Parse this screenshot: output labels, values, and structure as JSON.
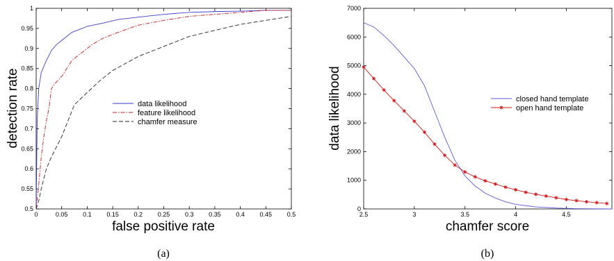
{
  "chart_data": [
    {
      "type": "line",
      "caption": "(a)",
      "xlabel": "false positive rate",
      "ylabel": "detection rate",
      "xlim": [
        0,
        0.5
      ],
      "ylim": [
        0.5,
        1
      ],
      "xticks": [
        0,
        0.05,
        0.1,
        0.15,
        0.2,
        0.25,
        0.3,
        0.35,
        0.4,
        0.45,
        0.5
      ],
      "xtick_labels": [
        "0",
        "0.05",
        "0.1",
        "0.15",
        "0.2",
        "0.25",
        "0.3",
        "0.35",
        "0.4",
        "0.45",
        "0.5"
      ],
      "yticks": [
        0.5,
        0.55,
        0.6,
        0.65,
        0.7,
        0.75,
        0.8,
        0.85,
        0.9,
        0.95,
        1
      ],
      "ytick_labels": [
        "0.5",
        "0.55",
        "0.6",
        "0.65",
        "0.7",
        "0.75",
        "0.8",
        "0.85",
        "0.9",
        "0.95",
        "1"
      ],
      "grid": false,
      "legend_position": "center-right",
      "series": [
        {
          "name": "data likelihood",
          "color": "#3b3bcf",
          "style": "solid",
          "x": [
            0,
            0.002,
            0.005,
            0.01,
            0.02,
            0.03,
            0.04,
            0.05,
            0.07,
            0.1,
            0.13,
            0.16,
            0.2,
            0.25,
            0.3,
            0.35,
            0.4,
            0.45,
            0.5
          ],
          "y": [
            0.5,
            0.72,
            0.8,
            0.84,
            0.87,
            0.895,
            0.91,
            0.92,
            0.94,
            0.955,
            0.963,
            0.972,
            0.978,
            0.985,
            0.99,
            0.992,
            0.993,
            0.995,
            0.995
          ]
        },
        {
          "name": "feature likelihood",
          "color": "#d01818",
          "style": "dashdot",
          "x": [
            0,
            0.005,
            0.01,
            0.015,
            0.02,
            0.025,
            0.03,
            0.035,
            0.05,
            0.07,
            0.09,
            0.11,
            0.13,
            0.16,
            0.2,
            0.25,
            0.3,
            0.35,
            0.4,
            0.45,
            0.5
          ],
          "y": [
            0.5,
            0.56,
            0.63,
            0.68,
            0.72,
            0.75,
            0.8,
            0.81,
            0.83,
            0.87,
            0.89,
            0.91,
            0.925,
            0.94,
            0.958,
            0.97,
            0.98,
            0.985,
            0.99,
            0.995,
            0.995
          ]
        },
        {
          "name": "chamfer measure",
          "color": "#222222",
          "style": "dashed",
          "x": [
            0,
            0.005,
            0.01,
            0.02,
            0.03,
            0.05,
            0.075,
            0.1,
            0.125,
            0.15,
            0.2,
            0.25,
            0.3,
            0.35,
            0.4,
            0.45,
            0.5
          ],
          "y": [
            0.5,
            0.52,
            0.55,
            0.6,
            0.63,
            0.68,
            0.76,
            0.79,
            0.82,
            0.845,
            0.88,
            0.905,
            0.93,
            0.945,
            0.96,
            0.97,
            0.98
          ]
        }
      ]
    },
    {
      "type": "line",
      "caption": "(b)",
      "xlabel": "chamfer score",
      "ylabel": "data likelihood",
      "xlim": [
        2.5,
        4.95
      ],
      "ylim": [
        0,
        7000
      ],
      "xticks": [
        2.5,
        3,
        3.5,
        4,
        4.5
      ],
      "xtick_labels": [
        "2.5",
        "3",
        "3.5",
        "4",
        "4.5"
      ],
      "yticks": [
        0,
        1000,
        2000,
        3000,
        4000,
        5000,
        6000,
        7000
      ],
      "ytick_labels": [
        "0",
        "1000",
        "2000",
        "3000",
        "4000",
        "5000",
        "6000",
        "7000"
      ],
      "grid": false,
      "legend_position": "center-right",
      "series": [
        {
          "name": "closed hand template",
          "color": "#5a5ad8",
          "style": "solid",
          "marker": "none",
          "x": [
            2.5,
            2.6,
            2.7,
            2.8,
            2.9,
            3.0,
            3.1,
            3.2,
            3.3,
            3.4,
            3.5,
            3.6,
            3.7,
            3.8,
            3.9,
            4.0,
            4.2,
            4.4,
            4.6,
            4.8,
            4.95
          ],
          "y": [
            6500,
            6350,
            6050,
            5700,
            5300,
            4900,
            4300,
            3400,
            2500,
            1700,
            1150,
            800,
            550,
            380,
            250,
            160,
            70,
            30,
            10,
            5,
            2
          ]
        },
        {
          "name": "open hand template",
          "color": "#d01818",
          "style": "solid",
          "marker": "star",
          "x": [
            2.5,
            2.6,
            2.7,
            2.8,
            2.9,
            3.0,
            3.1,
            3.2,
            3.3,
            3.4,
            3.5,
            3.6,
            3.7,
            3.8,
            3.9,
            4.0,
            4.1,
            4.2,
            4.3,
            4.4,
            4.5,
            4.6,
            4.7,
            4.8,
            4.9
          ],
          "y": [
            4950,
            4550,
            4150,
            3780,
            3420,
            3060,
            2680,
            2260,
            1870,
            1530,
            1290,
            1120,
            980,
            870,
            760,
            670,
            580,
            510,
            450,
            390,
            330,
            290,
            250,
            220,
            190
          ]
        }
      ]
    }
  ]
}
